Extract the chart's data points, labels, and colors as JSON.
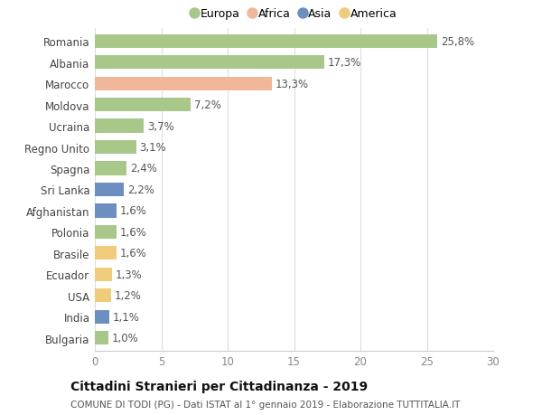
{
  "countries": [
    "Romania",
    "Albania",
    "Marocco",
    "Moldova",
    "Ucraina",
    "Regno Unito",
    "Spagna",
    "Sri Lanka",
    "Afghanistan",
    "Polonia",
    "Brasile",
    "Ecuador",
    "USA",
    "India",
    "Bulgaria"
  ],
  "values": [
    25.8,
    17.3,
    13.3,
    7.2,
    3.7,
    3.1,
    2.4,
    2.2,
    1.6,
    1.6,
    1.6,
    1.3,
    1.2,
    1.1,
    1.0
  ],
  "labels": [
    "25,8%",
    "17,3%",
    "13,3%",
    "7,2%",
    "3,7%",
    "3,1%",
    "2,4%",
    "2,2%",
    "1,6%",
    "1,6%",
    "1,6%",
    "1,3%",
    "1,2%",
    "1,1%",
    "1,0%"
  ],
  "continents": [
    "Europa",
    "Europa",
    "Africa",
    "Europa",
    "Europa",
    "Europa",
    "Europa",
    "Asia",
    "Asia",
    "Europa",
    "America",
    "America",
    "America",
    "Asia",
    "Europa"
  ],
  "colors": {
    "Europa": "#a8c88a",
    "Africa": "#f0b899",
    "Asia": "#6b8fc0",
    "America": "#f0cc7a"
  },
  "title": "Cittadini Stranieri per Cittadinanza - 2019",
  "subtitle": "COMUNE DI TODI (PG) - Dati ISTAT al 1° gennaio 2019 - Elaborazione TUTTITALIA.IT",
  "xlim": [
    0,
    30
  ],
  "xticks": [
    0,
    5,
    10,
    15,
    20,
    25,
    30
  ],
  "background_color": "#ffffff",
  "grid_color": "#dddddd",
  "bar_height": 0.65,
  "label_fontsize": 8.5,
  "ytick_fontsize": 8.5,
  "xtick_fontsize": 8.5,
  "title_fontsize": 10,
  "subtitle_fontsize": 7.5,
  "legend_entries": [
    "Europa",
    "Africa",
    "Asia",
    "America"
  ]
}
